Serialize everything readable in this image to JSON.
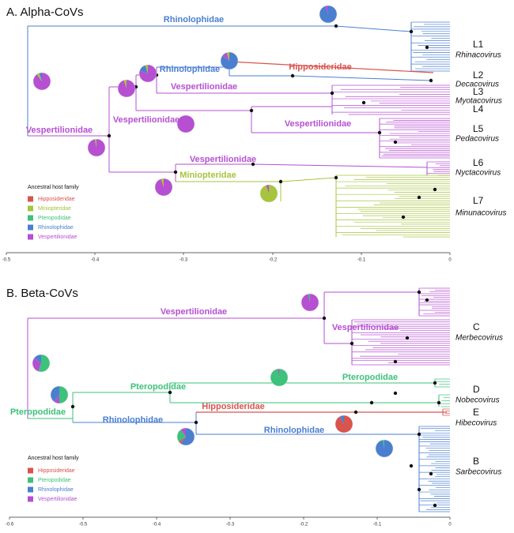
{
  "panels": [
    {
      "title": "A. Alpha-CoVs",
      "branch_labels": [
        "Rhinolophidae",
        "Rhinolophidae",
        "Hipposideridae",
        "Vespertilionidae",
        "Vespertilionidae",
        "Vespertilionidae",
        "Vespertilionidae",
        "Vespertilionidae",
        "Miniopteridae"
      ],
      "clades": [
        {
          "name": "L1",
          "genus": "Rhinacovirus"
        },
        {
          "name": "L2",
          "genus": "Decacovirus"
        },
        {
          "name": "L3",
          "genus": "Myotacovirus"
        },
        {
          "name": "L4"
        },
        {
          "name": "L5",
          "genus": "Pedacovirus"
        },
        {
          "name": "L6",
          "genus": "Nyctacovirus"
        },
        {
          "name": "L7",
          "genus": "Minunacovirus"
        }
      ],
      "legend": {
        "title": "Ancestral host family",
        "items": [
          "Hipposideridae",
          "Miniopteridae",
          "Pteropodidae",
          "Rhinolophidae",
          "Vespertilionidae"
        ]
      },
      "axis_ticks": [
        "-0.5",
        "-0.4",
        "-0.3",
        "-0.2",
        "-0.1",
        "0"
      ]
    },
    {
      "title": "B. Beta-CoVs",
      "branch_labels": [
        "Vespertilionidae",
        "Vespertilionidae",
        "Pteropodidae",
        "Pteropodidae",
        "Pteropodidae",
        "Rhinolophidae",
        "Hipposideridae",
        "Rhinolophidae"
      ],
      "clades": [
        {
          "name": "C",
          "genus": "Merbecovirus"
        },
        {
          "name": "D",
          "genus": "Nobecovirus"
        },
        {
          "name": "E",
          "genus": "Hibecovirus"
        },
        {
          "name": "B",
          "genus": "Sarbecovirus"
        }
      ],
      "legend": {
        "title": "Ancestral host family",
        "items": [
          "Hipposideridae",
          "Pteropodidae",
          "Rhinolophidae",
          "Vespertilionidae"
        ]
      },
      "axis_ticks": [
        "-0.6",
        "-0.5",
        "-0.4",
        "-0.3",
        "-0.2",
        "-0.1",
        "0"
      ]
    }
  ]
}
